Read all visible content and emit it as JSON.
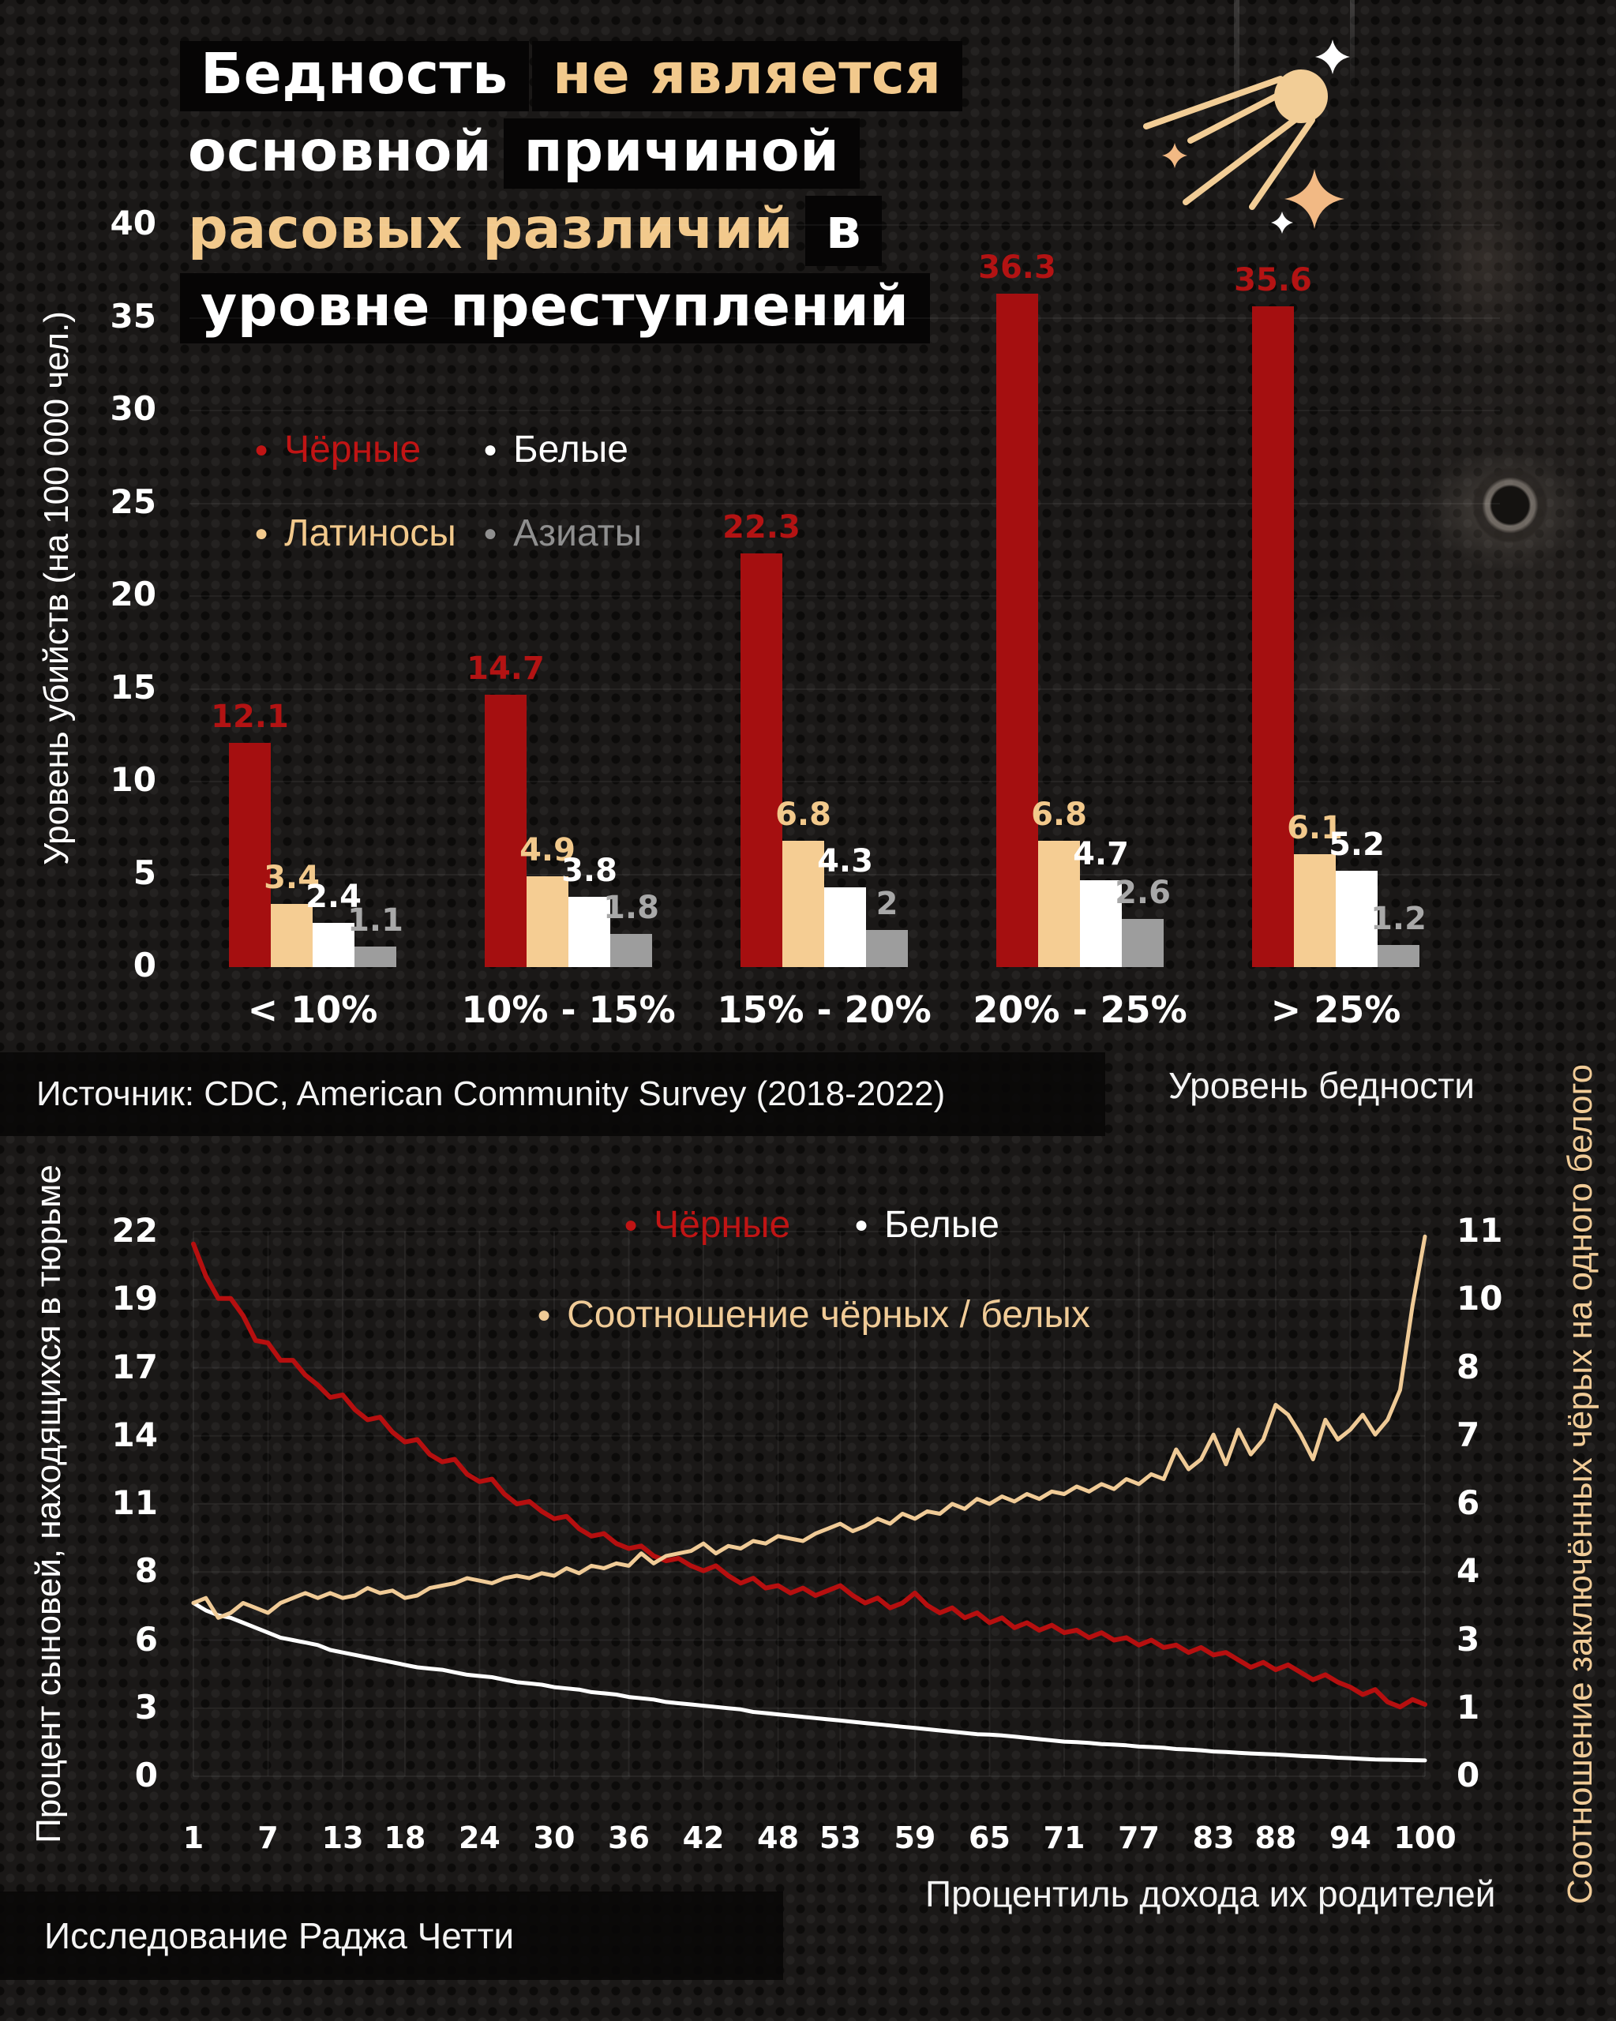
{
  "title": {
    "part1": "Бедность",
    "part2": "не является",
    "part3": "основной",
    "part4": "причиной",
    "part5": "расовых различий",
    "part6": "в",
    "part7": "уровне преступлений"
  },
  "colors": {
    "background": "#1a1817",
    "highlight_box": "#060505",
    "red_bar": "#a50f10",
    "red_text": "#b31313",
    "red_legend": "#c01414",
    "tan": "#f5cd93",
    "tan_text": "#f2c98c",
    "white": "#ffffff",
    "gray_bar": "#9d9d9d",
    "gray_text": "#a8a8a8",
    "gray_legend": "#8f8f8f"
  },
  "source_label": "Источник: CDC, American Community Survey (2018-2022)",
  "footer_label": "Исследование Раджа Четти",
  "chart_data": [
    {
      "type": "bar",
      "title": "Бедность не является основной причиной расовых различий в уровне преступлений",
      "categories": [
        "< 10%",
        "10% - 15%",
        "15% - 20%",
        "20% - 25%",
        "> 25%"
      ],
      "series": [
        {
          "name": "Чёрные",
          "color": "#a50f10",
          "label_color": "#b31313",
          "values": [
            12.1,
            14.7,
            22.3,
            36.3,
            35.6
          ]
        },
        {
          "name": "Латиносы",
          "color": "#f5cd93",
          "label_color": "#f2c98c",
          "values": [
            3.4,
            4.9,
            6.8,
            6.8,
            6.1
          ]
        },
        {
          "name": "Белые",
          "color": "#ffffff",
          "label_color": "#ffffff",
          "values": [
            2.4,
            3.8,
            4.3,
            4.7,
            5.2
          ]
        },
        {
          "name": "Азиаты",
          "color": "#9d9d9d",
          "label_color": "#a8a8a8",
          "values": [
            1.1,
            1.8,
            2,
            2.6,
            1.2
          ]
        }
      ],
      "legend": [
        {
          "label": "Чёрные",
          "color": "#c01414"
        },
        {
          "label": "Белые",
          "color": "#ffffff"
        },
        {
          "label": "Латиносы",
          "color": "#f2c98c"
        },
        {
          "label": "Азиаты",
          "color": "#8f8f8f"
        }
      ],
      "ylabel": "Уровень убийств (на 100 000 чел.)",
      "xlabel": "Уровень бедности",
      "yticks": [
        40,
        35,
        30,
        25,
        20,
        15,
        10,
        5,
        0
      ],
      "ylim": [
        0,
        40
      ],
      "grid": "horizontal, faint"
    },
    {
      "type": "line",
      "xlabel": "Процентиль дохода их родителей",
      "ylabel_left": "Процент сыновей, находящихся в тюрьме",
      "ylabel_right": "Соотношение заключённых чёрых на одного белого",
      "xticks": [
        1,
        7,
        13,
        18,
        24,
        30,
        36,
        42,
        48,
        53,
        59,
        65,
        71,
        77,
        83,
        88,
        94,
        100
      ],
      "yticks_left": [
        22,
        19,
        17,
        14,
        11,
        8,
        6,
        3,
        0
      ],
      "yticks_right": [
        11,
        10,
        8,
        7,
        6,
        4,
        3,
        1,
        0
      ],
      "ylim_left": [
        0,
        22
      ],
      "ylim_right": [
        0,
        11
      ],
      "xlim": [
        1,
        100
      ],
      "grid": "both, faint",
      "legend": [
        {
          "label": "Чёрные",
          "color": "#c01414"
        },
        {
          "label": "Белые",
          "color": "#ffffff"
        },
        {
          "label": "Соотношение чёрных / белых",
          "color": "#f0cb97"
        }
      ],
      "x": [
        1,
        2,
        3,
        4,
        5,
        6,
        7,
        8,
        9,
        10,
        11,
        12,
        13,
        14,
        15,
        16,
        17,
        18,
        19,
        20,
        21,
        22,
        23,
        24,
        25,
        26,
        27,
        28,
        29,
        30,
        31,
        32,
        33,
        34,
        35,
        36,
        37,
        38,
        39,
        40,
        41,
        42,
        43,
        44,
        45,
        46,
        47,
        48,
        49,
        50,
        51,
        52,
        53,
        54,
        55,
        56,
        57,
        58,
        59,
        60,
        61,
        62,
        63,
        64,
        65,
        66,
        67,
        68,
        69,
        70,
        71,
        72,
        73,
        74,
        75,
        76,
        77,
        78,
        79,
        80,
        81,
        82,
        83,
        84,
        85,
        86,
        87,
        88,
        89,
        90,
        91,
        92,
        93,
        94,
        95,
        96,
        97,
        98,
        99,
        100
      ],
      "series": [
        {
          "name": "Чёрные",
          "axis": "left",
          "color": "#b60f0f",
          "width": 6,
          "values": [
            21.5,
            20.2,
            19.3,
            19.3,
            18.6,
            17.6,
            17.5,
            16.8,
            16.8,
            16.2,
            15.8,
            15.3,
            15.4,
            14.8,
            14.4,
            14.5,
            13.9,
            13.5,
            13.6,
            13.0,
            12.7,
            12.8,
            12.2,
            11.9,
            12.0,
            11.4,
            11.0,
            11.1,
            10.7,
            10.4,
            10.5,
            10.0,
            9.7,
            9.8,
            9.4,
            9.2,
            9.3,
            8.9,
            8.7,
            8.8,
            8.5,
            8.3,
            8.5,
            8.1,
            7.8,
            8.0,
            7.6,
            7.7,
            7.4,
            7.6,
            7.3,
            7.5,
            7.7,
            7.3,
            7.0,
            7.2,
            6.8,
            7.0,
            7.4,
            6.9,
            6.6,
            6.8,
            6.4,
            6.6,
            6.2,
            6.4,
            6.0,
            6.2,
            5.9,
            6.1,
            5.8,
            5.9,
            5.6,
            5.8,
            5.5,
            5.6,
            5.3,
            5.5,
            5.2,
            5.3,
            5.0,
            5.2,
            4.9,
            5.0,
            4.7,
            4.4,
            4.6,
            4.3,
            4.5,
            4.2,
            3.9,
            4.1,
            3.8,
            3.6,
            3.3,
            3.5,
            3.0,
            2.8,
            3.1,
            2.9
          ]
        },
        {
          "name": "Белые",
          "axis": "left",
          "color": "#ffffff",
          "width": 5,
          "values": [
            7.0,
            6.7,
            6.5,
            6.4,
            6.2,
            6.0,
            5.8,
            5.6,
            5.5,
            5.4,
            5.3,
            5.1,
            5.0,
            4.9,
            4.8,
            4.7,
            4.6,
            4.5,
            4.4,
            4.35,
            4.3,
            4.2,
            4.1,
            4.05,
            4.0,
            3.9,
            3.8,
            3.75,
            3.7,
            3.6,
            3.55,
            3.5,
            3.4,
            3.35,
            3.3,
            3.2,
            3.15,
            3.1,
            3.0,
            2.95,
            2.9,
            2.85,
            2.8,
            2.75,
            2.7,
            2.6,
            2.55,
            2.5,
            2.45,
            2.4,
            2.35,
            2.3,
            2.25,
            2.2,
            2.15,
            2.1,
            2.05,
            2.0,
            1.95,
            1.9,
            1.85,
            1.8,
            1.75,
            1.7,
            1.68,
            1.65,
            1.6,
            1.55,
            1.5,
            1.45,
            1.4,
            1.38,
            1.35,
            1.3,
            1.28,
            1.25,
            1.2,
            1.18,
            1.15,
            1.1,
            1.08,
            1.05,
            1.0,
            0.98,
            0.95,
            0.92,
            0.9,
            0.88,
            0.85,
            0.82,
            0.8,
            0.78,
            0.75,
            0.73,
            0.7,
            0.68,
            0.67,
            0.66,
            0.65,
            0.64
          ]
        },
        {
          "name": "Соотношение чёрных / белых",
          "axis": "right",
          "color": "#f0cb97",
          "width": 5,
          "values": [
            3.5,
            3.6,
            3.2,
            3.3,
            3.5,
            3.4,
            3.3,
            3.5,
            3.6,
            3.7,
            3.6,
            3.7,
            3.6,
            3.65,
            3.8,
            3.7,
            3.75,
            3.6,
            3.65,
            3.8,
            3.85,
            3.9,
            4.0,
            3.95,
            3.9,
            4.0,
            4.05,
            4.0,
            4.1,
            4.05,
            4.2,
            4.1,
            4.25,
            4.2,
            4.3,
            4.25,
            4.5,
            4.3,
            4.45,
            4.5,
            4.55,
            4.7,
            4.5,
            4.65,
            4.6,
            4.75,
            4.7,
            4.85,
            4.8,
            4.75,
            4.9,
            5.0,
            5.1,
            4.95,
            5.05,
            5.2,
            5.1,
            5.3,
            5.2,
            5.35,
            5.3,
            5.5,
            5.4,
            5.6,
            5.5,
            5.65,
            5.55,
            5.7,
            5.6,
            5.75,
            5.7,
            5.85,
            5.75,
            5.9,
            5.8,
            6.0,
            5.9,
            6.1,
            6.0,
            6.6,
            6.2,
            6.4,
            6.9,
            6.3,
            7.0,
            6.5,
            6.8,
            7.5,
            7.3,
            6.9,
            6.4,
            7.2,
            6.8,
            7.0,
            7.3,
            6.9,
            7.2,
            7.8,
            9.5,
            10.9
          ]
        }
      ],
      "source": "Исследование Раджа Четти"
    }
  ],
  "decor": {
    "satellite_color": "#f2cd96",
    "star_color_white": "#ffffff",
    "star_color_tan": "#f2b984"
  }
}
